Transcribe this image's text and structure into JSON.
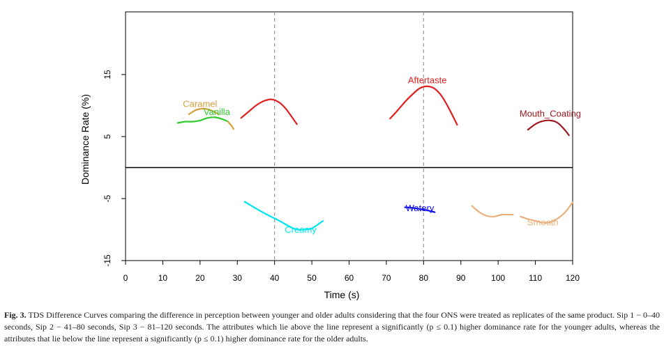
{
  "chart_data": {
    "type": "line",
    "title": "",
    "xlabel": "Time (s)",
    "ylabel": "Dominance Rate (%)",
    "xlim": [
      0,
      120
    ],
    "ylim": [
      -15,
      25
    ],
    "xticks": [
      0,
      10,
      20,
      30,
      40,
      50,
      60,
      70,
      80,
      90,
      100,
      110,
      120
    ],
    "yticks": [
      -15,
      -5,
      5,
      15
    ],
    "zero_line": 0,
    "vlines": [
      40,
      80
    ],
    "grid": false,
    "series": [
      {
        "name": "Caramel",
        "color": "#d4a03c",
        "label": "Caramel",
        "x": [
          17,
          19,
          21,
          23,
          25
        ],
        "y": [
          8.6,
          9.3,
          9.5,
          9.2,
          8.6
        ]
      },
      {
        "name": "Vanilla",
        "color": "#2ecc2e",
        "label": "Vanilla",
        "x": [
          14,
          16,
          18,
          20,
          22,
          24,
          26,
          27.5
        ],
        "y": [
          7.2,
          7.4,
          7.4,
          7.6,
          8.0,
          8.1,
          7.8,
          7.4
        ]
      },
      {
        "name": "Vanilla (tail)",
        "color": "#d4a03c",
        "label": "",
        "x": [
          27.5,
          28.5,
          29
        ],
        "y": [
          7.4,
          6.7,
          6.2
        ]
      },
      {
        "name": "Aftertaste (Sip 1)",
        "color": "#e02020",
        "label": "",
        "x": [
          31,
          33,
          35,
          37,
          39,
          41,
          43,
          46
        ],
        "y": [
          8.0,
          9.0,
          10.0,
          10.7,
          11.0,
          10.6,
          9.5,
          7.0
        ]
      },
      {
        "name": "Aftertaste",
        "color": "#e02020",
        "label": "Aftertaste",
        "x": [
          71,
          73,
          75,
          77,
          79,
          81,
          83,
          85,
          87,
          89
        ],
        "y": [
          7.9,
          9.2,
          10.6,
          11.8,
          12.8,
          13.1,
          12.7,
          11.4,
          9.3,
          6.9
        ]
      },
      {
        "name": "Mouth_Coating",
        "color": "#a01820",
        "label": "Mouth_Coating",
        "x": [
          108,
          110,
          112,
          114,
          116,
          118,
          119
        ],
        "y": [
          6.1,
          7.0,
          7.5,
          7.6,
          7.2,
          6.0,
          5.2
        ]
      },
      {
        "name": "Creamy",
        "color": "#00e5ee",
        "label": "Creamy",
        "x": [
          32,
          35,
          38,
          41,
          44,
          46,
          48,
          50,
          53
        ],
        "y": [
          -5.5,
          -6.6,
          -7.6,
          -8.5,
          -9.5,
          -10.0,
          -10.0,
          -9.8,
          -8.6
        ]
      },
      {
        "name": "Watery",
        "color": "#1010ee",
        "label": "Watery",
        "x": [
          75,
          77,
          79,
          81,
          83
        ],
        "y": [
          -6.4,
          -6.5,
          -6.7,
          -6.9,
          -7.2
        ]
      },
      {
        "name": "Smooth (Sip 3a)",
        "color": "#e8b07c",
        "label": "",
        "x": [
          93,
          95,
          97,
          99,
          101,
          104
        ],
        "y": [
          -6.2,
          -7.2,
          -7.8,
          -7.9,
          -7.6,
          -7.6
        ]
      },
      {
        "name": "Smooth",
        "color": "#e8b07c",
        "label": "Smooth",
        "x": [
          106,
          108,
          110,
          112,
          114,
          116,
          118,
          120
        ],
        "y": [
          -7.9,
          -8.3,
          -8.6,
          -8.9,
          -8.8,
          -8.2,
          -7.2,
          -5.6
        ]
      }
    ],
    "labels_placement": [
      {
        "text": "Caramel",
        "color": "#d4a03c",
        "x": 20,
        "y": 9.8
      },
      {
        "text": "Vanilla",
        "color": "#2ecc2e",
        "x": 24.5,
        "y": 8.5
      },
      {
        "text": "Aftertaste",
        "color": "#e02020",
        "x": 81,
        "y": 13.6
      },
      {
        "text": "Mouth_Coating",
        "color": "#a01820",
        "x": 114,
        "y": 8.2
      },
      {
        "text": "Creamy",
        "color": "#00e5ee",
        "x": 47,
        "y": -10.5
      },
      {
        "text": "Watery",
        "color": "#1010ee",
        "x": 79,
        "y": -7.0
      },
      {
        "text": "Smooth",
        "color": "#e8b07c",
        "x": 112,
        "y": -9.3
      }
    ]
  },
  "caption": {
    "label": "Fig. 3.",
    "text": "TDS Difference Curves comparing the difference in perception between younger and older adults considering that the four ONS were treated as replicates of the same product. Sip 1 − 0–40 seconds, Sip 2 − 41–80 seconds, Sip 3 − 81–120 seconds. The attributes which lie above the line represent a significantly (p ≤ 0.1) higher dominance rate for the younger adults, whereas the attributes that lie below the line represent a significantly (p ≤ 0.1) higher dominance rate for the older adults."
  }
}
